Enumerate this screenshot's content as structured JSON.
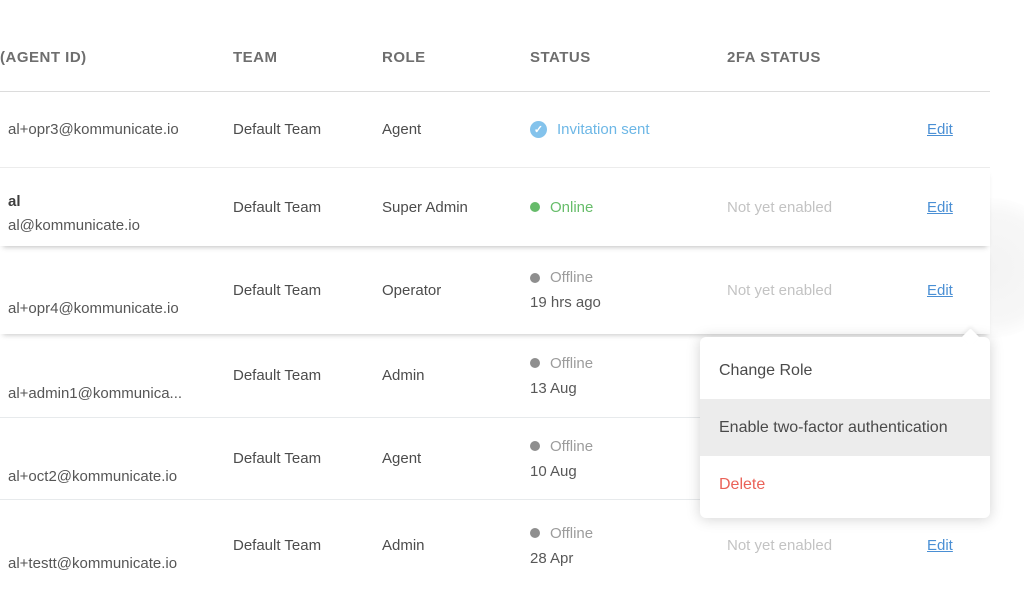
{
  "table": {
    "columns": [
      {
        "key": "agent_id",
        "label": "(AGENT ID)"
      },
      {
        "key": "team",
        "label": "TEAM"
      },
      {
        "key": "role",
        "label": "ROLE"
      },
      {
        "key": "status",
        "label": "STATUS"
      },
      {
        "key": "twofa",
        "label": "2FA STATUS"
      }
    ],
    "rows": [
      {
        "name": "",
        "email": "al+opr3@kommunicate.io",
        "team": "Default Team",
        "role": "Agent",
        "status": {
          "label": "Invitation sent",
          "type": "invited",
          "detail": ""
        },
        "twofa": "",
        "action": "Edit"
      },
      {
        "name": "al",
        "email": "al@kommunicate.io",
        "team": "Default Team",
        "role": "Super Admin",
        "status": {
          "label": "Online",
          "type": "online",
          "detail": ""
        },
        "twofa": "Not yet enabled",
        "action": "Edit"
      },
      {
        "name": "",
        "email": "al+opr4@kommunicate.io",
        "team": "Default Team",
        "role": "Operator",
        "status": {
          "label": "Offline",
          "type": "offline",
          "detail": "19 hrs ago"
        },
        "twofa": "Not yet enabled",
        "action": "Edit"
      },
      {
        "name": "",
        "email": "al+admin1@kommunica...",
        "team": "Default Team",
        "role": "Admin",
        "status": {
          "label": "Offline",
          "type": "offline",
          "detail": "13 Aug"
        },
        "twofa": "",
        "action": ""
      },
      {
        "name": "",
        "email": "al+oct2@kommunicate.io",
        "team": "Default Team",
        "role": "Agent",
        "status": {
          "label": "Offline",
          "type": "offline",
          "detail": "10 Aug"
        },
        "twofa": "",
        "action": ""
      },
      {
        "name": "",
        "email": "al+testt@kommunicate.io",
        "team": "Default Team",
        "role": "Admin",
        "status": {
          "label": "Offline",
          "type": "offline",
          "detail": "28 Apr"
        },
        "twofa": "Not yet enabled",
        "action": "Edit"
      }
    ]
  },
  "context_menu": {
    "items": [
      {
        "label": "Change Role",
        "state": "normal"
      },
      {
        "label": "Enable two-factor authentication",
        "state": "highlighted"
      },
      {
        "label": "Delete",
        "state": "danger"
      }
    ]
  },
  "icons": {
    "invitation_check": "✓"
  },
  "colors": {
    "link_blue": "#4a8fd4",
    "invited_blue": "#6db7e6",
    "online_green": "#66bb6a",
    "offline_gray": "#9c9c9c",
    "danger_red": "#ea6258",
    "muted_gray": "#c3c3c3",
    "menu_highlight": "#ececec"
  }
}
